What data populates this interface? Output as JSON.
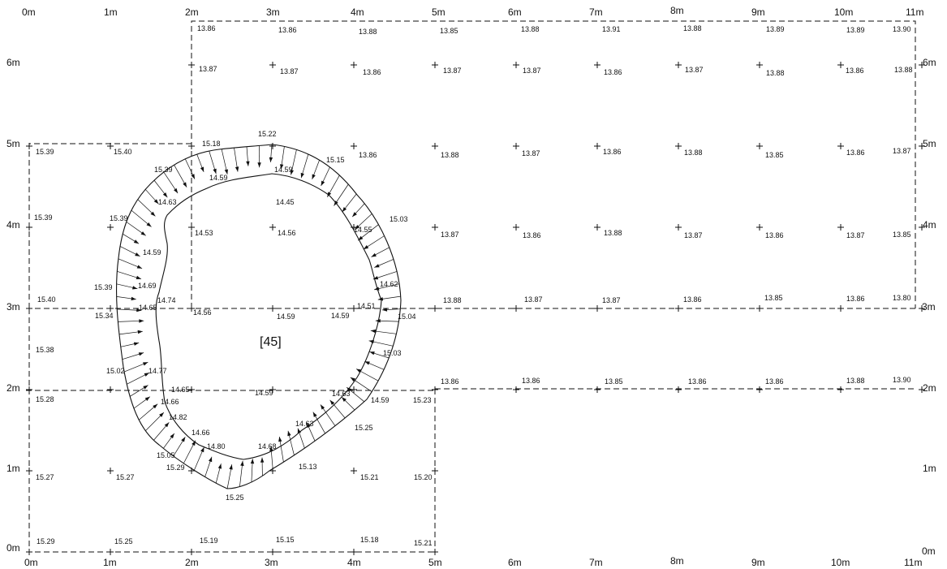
{
  "grid": {
    "x_labels": [
      "0m",
      "1m",
      "2m",
      "3m",
      "4m",
      "5m",
      "6m",
      "7m",
      "8m",
      "9m",
      "10m",
      "11m"
    ],
    "y_labels": [
      "0m",
      "1m",
      "2m",
      "3m",
      "4m",
      "5m",
      "6m"
    ]
  },
  "context_label": "[45]",
  "levels_top": [
    "13.86",
    "13.86",
    "13.88",
    "13.85",
    "13.88",
    "13.91",
    "13.88",
    "13.89",
    "13.89",
    "13.90",
    "13.87",
    "13.87",
    "13.86",
    "13.87",
    "13.87",
    "13.86",
    "13.87",
    "13.88",
    "13.86",
    "13.88",
    "15.39",
    "15.40",
    "15.18",
    "15.22",
    "13.86",
    "15.15",
    "13.88",
    "13.87",
    "13.86",
    "13.88",
    "13.85",
    "13.86",
    "13.87",
    "15.39",
    "14.63",
    "14.59",
    "14.59",
    "14.45",
    "15.39",
    "15.39",
    "14.53",
    "14.56",
    "14.55",
    "15.03",
    "13.87",
    "13.86",
    "13.88",
    "13.87",
    "13.86",
    "13.87",
    "13.85",
    "14.59",
    "14.69",
    "15.39",
    "14.74",
    "14.62",
    "15.40",
    "14.65",
    "14.56",
    "14.59",
    "14.51",
    "14.59",
    "15.04",
    "13.88",
    "13.87",
    "13.87",
    "13.86",
    "13.85",
    "13.86",
    "13.80"
  ],
  "levels_bottom": [
    "15.34",
    "15.38",
    "15.03",
    "15.02",
    "14.77",
    "15.28",
    "14.65",
    "14.59",
    "14.63",
    "14.59",
    "15.23",
    "13.86",
    "13.86",
    "13.85",
    "13.86",
    "13.86",
    "13.88",
    "13.90",
    "14.66",
    "14.82",
    "14.63",
    "15.25",
    "14.66",
    "14.80",
    "14.68",
    "15.05",
    "15.29",
    "15.13",
    "15.27",
    "15.27",
    "15.21",
    "15.20",
    "15.25",
    "15.29",
    "15.25",
    "15.19",
    "15.15",
    "15.18",
    "15.21"
  ]
}
